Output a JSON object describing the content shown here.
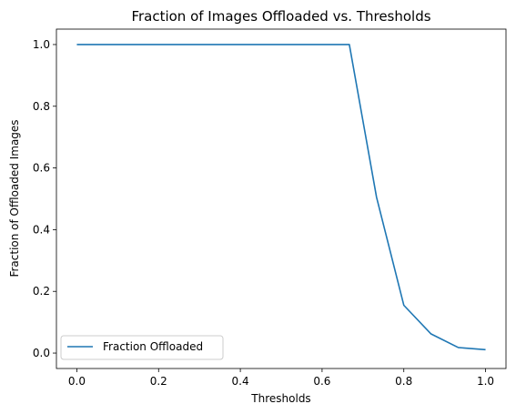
{
  "chart_data": {
    "type": "line",
    "title": "Fraction of Images Offloaded vs. Thresholds",
    "xlabel": "Thresholds",
    "ylabel": "Fraction of Offloaded Images",
    "xlim": [
      -0.05,
      1.05
    ],
    "ylim": [
      -0.05,
      1.05
    ],
    "xticks": [
      0.0,
      0.2,
      0.4,
      0.6,
      0.8,
      1.0
    ],
    "xtick_labels": [
      "0.0",
      "0.2",
      "0.4",
      "0.6",
      "0.8",
      "1.0"
    ],
    "yticks": [
      0.0,
      0.2,
      0.4,
      0.6,
      0.8,
      1.0
    ],
    "ytick_labels": [
      "0.0",
      "0.2",
      "0.4",
      "0.6",
      "0.8",
      "1.0"
    ],
    "grid": false,
    "legend_position": "lower-left",
    "series": [
      {
        "name": "Fraction Offloaded",
        "color": "#1f77b4",
        "x": [
          0.0,
          0.0667,
          0.1333,
          0.2,
          0.2667,
          0.3333,
          0.4,
          0.4667,
          0.5333,
          0.6,
          0.6667,
          0.7333,
          0.8,
          0.8667,
          0.9333,
          1.0
        ],
        "y": [
          1.0,
          1.0,
          1.0,
          1.0,
          1.0,
          1.0,
          1.0,
          1.0,
          1.0,
          1.0,
          1.0,
          0.505,
          0.155,
          0.062,
          0.018,
          0.011
        ]
      }
    ]
  }
}
